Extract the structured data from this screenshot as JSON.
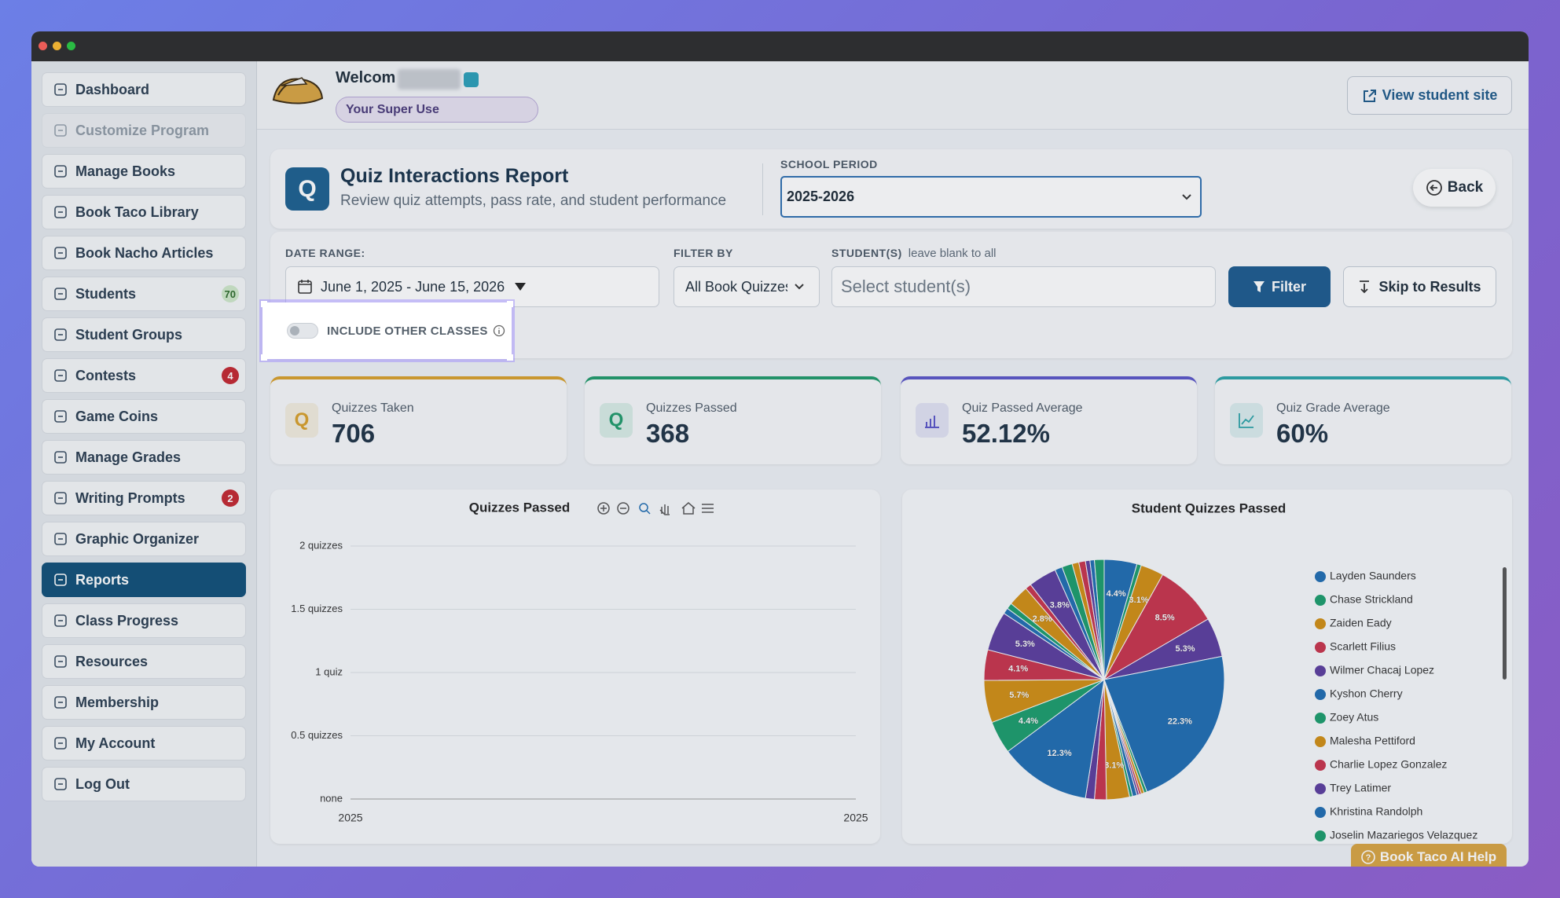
{
  "sidebar": {
    "items": [
      {
        "label": "Dashboard"
      },
      {
        "label": "Customize Program",
        "disabled": true
      },
      {
        "label": "Manage Books"
      },
      {
        "label": "Book Taco Library"
      },
      {
        "label": "Book Nacho Articles"
      },
      {
        "label": "Students",
        "badge": 70
      },
      {
        "label": "Student Groups"
      },
      {
        "label": "Contests",
        "badge": 4
      },
      {
        "label": "Game Coins"
      },
      {
        "label": "Manage Grades"
      },
      {
        "label": "Writing Prompts",
        "badge": 2
      },
      {
        "label": "Graphic Organizer"
      },
      {
        "label": "Reports",
        "active": true
      },
      {
        "label": "Class Progress"
      },
      {
        "label": "Resources"
      },
      {
        "label": "Membership"
      },
      {
        "label": "My Account"
      },
      {
        "label": "Log Out"
      }
    ]
  },
  "header": {
    "welcome": "Welcom",
    "role": "Your Super Use",
    "view_site": "View student site"
  },
  "report": {
    "icon": "Q",
    "title": "Quiz Interactions Report",
    "subtitle": "Review quiz attempts, pass rate, and student performance",
    "period_label": "SCHOOL PERIOD",
    "period": "2025-2026",
    "back": "Back"
  },
  "filters": {
    "date_label": "DATE RANGE:",
    "date": "June 1, 2025 - June 15, 2026",
    "filter_label": "FILTER BY",
    "filter": "All Book Quizzes",
    "students_label": "STUDENT(S)",
    "students_hint": "leave blank to all",
    "students_placeholder": "Select student(s)",
    "filter_button": "Filter",
    "skip_button": "Skip to Results",
    "include_other": "INCLUDE OTHER CLASSES"
  },
  "stats": [
    {
      "icon": "Q",
      "label": "Quizzes Taken",
      "value": "706",
      "color": "#d9a02a"
    },
    {
      "icon": "Q",
      "label": "Quizzes Passed",
      "value": "368",
      "color": "#1f9a6a"
    },
    {
      "label": "Quiz Passed Average",
      "value": "52.12%",
      "color": "#5a55c8"
    },
    {
      "label": "Quiz Grade Average",
      "value": "60%",
      "color": "#2aa3a8"
    }
  ],
  "chart_data": [
    {
      "type": "line",
      "title": "Quizzes Passed",
      "categories": [
        "2025",
        "2025"
      ],
      "ylim": [
        0,
        2
      ],
      "yticks": [
        {
          "value": 0,
          "label": "none"
        },
        {
          "value": 0.5,
          "label": "0.5 quizzes"
        },
        {
          "value": 1,
          "label": "1 quiz"
        },
        {
          "value": 1.5,
          "label": "1.5 quizzes"
        },
        {
          "value": 2,
          "label": "2 quizzes"
        }
      ],
      "grid": true
    },
    {
      "type": "pie",
      "title": "Student Quizzes Passed",
      "categories": [
        "Layden Saunders",
        "Chase Strickland",
        "Zaiden Eady",
        "Scarlett Filius",
        "Wilmer Chacaj Lopez",
        "Kyshon Cherry",
        "Zoey Atus",
        "Malesha Pettiford",
        "Charlie Lopez Gonzalez",
        "Trey Latimer",
        "Khristina Randolph",
        "Joselin Mazariegos Velazquez",
        null,
        null,
        null,
        null,
        null,
        null,
        null,
        null,
        null,
        null,
        null,
        null,
        null,
        null,
        null,
        null,
        null,
        null,
        null,
        null
      ],
      "values": [
        4.4,
        0.6,
        3.1,
        8.5,
        5.3,
        22.3,
        0.4,
        0.4,
        0.3,
        0.3,
        0.6,
        0.4,
        3.1,
        1.6,
        1.2,
        12.3,
        4.4,
        5.7,
        4.1,
        5.3,
        0.8,
        0.8,
        2.8,
        0.8,
        3.8,
        1.0,
        1.4,
        0.9,
        0.9,
        0.6,
        0.6,
        1.3
      ],
      "value_labels": [
        "4.4%",
        null,
        "3.1%",
        "8.5%",
        "5.3%",
        "22.3%",
        null,
        null,
        null,
        null,
        null,
        null,
        "3.1%",
        null,
        null,
        "12.3%",
        "4.4%",
        "5.7%",
        "4.1%",
        "5.3%",
        null,
        null,
        "2.8%",
        null,
        "3.8%",
        null,
        null,
        null,
        null,
        null,
        null,
        null
      ],
      "colors": [
        "#1f6db2",
        "#1a9c6b",
        "#d18e12",
        "#c8334b",
        "#5b3d9e"
      ],
      "legend": "right"
    }
  ],
  "help": "Book Taco AI Help"
}
